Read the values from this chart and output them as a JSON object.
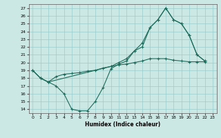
{
  "xlabel": "Humidex (Indice chaleur)",
  "background_color": "#cce8e4",
  "grid_color": "#99cccc",
  "line_color": "#1a6b5a",
  "xlim": [
    -0.5,
    23.5
  ],
  "ylim": [
    13.5,
    27.5
  ],
  "yticks": [
    14,
    15,
    16,
    17,
    18,
    19,
    20,
    21,
    22,
    23,
    24,
    25,
    26,
    27
  ],
  "xticks": [
    0,
    1,
    2,
    3,
    4,
    5,
    6,
    7,
    8,
    9,
    10,
    11,
    12,
    13,
    14,
    15,
    16,
    17,
    18,
    19,
    20,
    21,
    22,
    23
  ],
  "line1_x": [
    0,
    1,
    2,
    3,
    4,
    5,
    6,
    7,
    8,
    9,
    10,
    11,
    12,
    13,
    14,
    15,
    16,
    17,
    18,
    19,
    20,
    21,
    22
  ],
  "line1_y": [
    19.0,
    18.0,
    17.5,
    17.0,
    16.0,
    14.0,
    13.8,
    13.8,
    15.0,
    16.8,
    19.2,
    19.8,
    20.2,
    21.5,
    22.0,
    24.5,
    25.5,
    27.0,
    25.5,
    25.0,
    23.5,
    21.0,
    20.2
  ],
  "line2_x": [
    0,
    1,
    2,
    10,
    11,
    12,
    13,
    14,
    15,
    16,
    17,
    18,
    19,
    20,
    21,
    22
  ],
  "line2_y": [
    19.0,
    18.0,
    17.5,
    19.5,
    20.0,
    20.5,
    21.5,
    22.5,
    24.5,
    25.5,
    27.0,
    25.5,
    25.0,
    23.5,
    21.0,
    20.2
  ],
  "line3_x": [
    0,
    1,
    2,
    3,
    4,
    5,
    6,
    7,
    8,
    9,
    10,
    11,
    12,
    13,
    14,
    15,
    16,
    17,
    18,
    19,
    20,
    21,
    22
  ],
  "line3_y": [
    19.0,
    18.0,
    17.5,
    18.2,
    18.5,
    18.6,
    18.7,
    18.9,
    19.0,
    19.3,
    19.5,
    19.7,
    19.8,
    20.0,
    20.2,
    20.5,
    20.5,
    20.5,
    20.3,
    20.2,
    20.1,
    20.1,
    20.1
  ]
}
